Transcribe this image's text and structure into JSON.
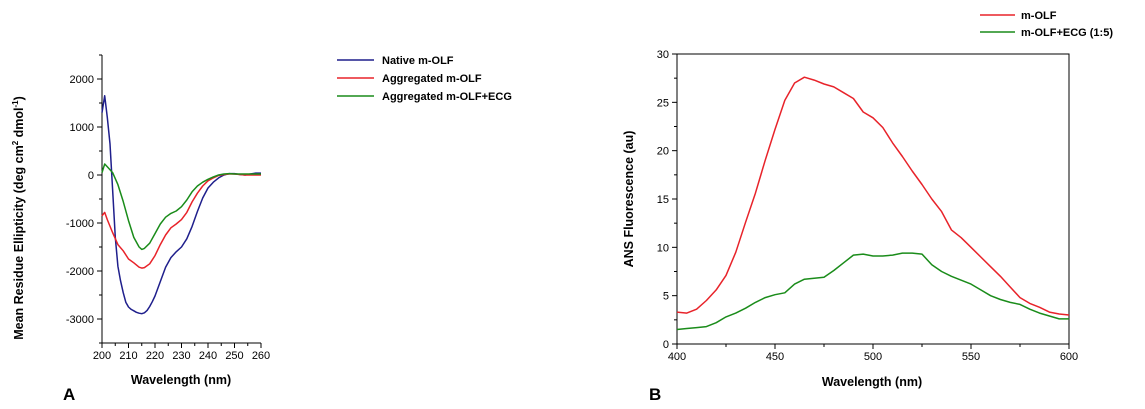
{
  "chart_data": [
    {
      "type": "line",
      "panel_label": "A",
      "xlabel": "Wavelength (nm)",
      "ylabel_main": "Mean Residue Ellipticity (deg cm",
      "ylabel_mid": " dmol",
      "ylabel_end": ")",
      "ylabel_sup1": "2",
      "ylabel_sup2": "-1",
      "xlim": [
        200,
        260
      ],
      "ylim": [
        -3500,
        2500
      ],
      "xticks": [
        200,
        210,
        220,
        230,
        240,
        250,
        260
      ],
      "yticks": [
        -3000,
        -2000,
        -1000,
        0,
        1000,
        2000
      ],
      "legend_position": "top-right",
      "series": [
        {
          "name": "Native m-OLF",
          "color": "#1f1f8c",
          "x": [
            200,
            201,
            202,
            203,
            204,
            205,
            206,
            207,
            208,
            209,
            210,
            211,
            212,
            213,
            214,
            215,
            216,
            217,
            218,
            219,
            220,
            222,
            224,
            226,
            228,
            230,
            232,
            234,
            236,
            238,
            240,
            242,
            244,
            246,
            248,
            250,
            252,
            254,
            256,
            258,
            260
          ],
          "y": [
            1300,
            1650,
            1200,
            650,
            -300,
            -1300,
            -1900,
            -2200,
            -2450,
            -2650,
            -2750,
            -2800,
            -2830,
            -2860,
            -2880,
            -2890,
            -2870,
            -2820,
            -2740,
            -2640,
            -2520,
            -2220,
            -1920,
            -1720,
            -1600,
            -1500,
            -1330,
            -1070,
            -760,
            -480,
            -270,
            -150,
            -60,
            0,
            30,
            30,
            10,
            0,
            20,
            40,
            40
          ]
        },
        {
          "name": "Aggregated m-OLF",
          "color": "#e8232a",
          "x": [
            200,
            201,
            202,
            204,
            206,
            208,
            210,
            212,
            214,
            215,
            216,
            218,
            220,
            222,
            224,
            226,
            228,
            230,
            232,
            234,
            236,
            238,
            240,
            242,
            244,
            246,
            248,
            250,
            252,
            254,
            256,
            258,
            260
          ],
          "y": [
            -850,
            -780,
            -930,
            -1200,
            -1450,
            -1580,
            -1750,
            -1830,
            -1920,
            -1940,
            -1930,
            -1850,
            -1680,
            -1450,
            -1250,
            -1100,
            -1020,
            -930,
            -780,
            -560,
            -380,
            -230,
            -120,
            -60,
            -10,
            10,
            20,
            20,
            10,
            0,
            0,
            0,
            0
          ]
        },
        {
          "name": "Aggregated m-OLF+ECG",
          "color": "#1a8c1a",
          "x": [
            200,
            201,
            202,
            204,
            206,
            208,
            210,
            212,
            214,
            215,
            216,
            218,
            220,
            222,
            224,
            226,
            228,
            230,
            232,
            234,
            236,
            238,
            240,
            242,
            244,
            246,
            248,
            250,
            252,
            254,
            256,
            258,
            260
          ],
          "y": [
            50,
            230,
            170,
            50,
            -200,
            -550,
            -950,
            -1300,
            -1500,
            -1550,
            -1530,
            -1420,
            -1220,
            -1020,
            -880,
            -800,
            -750,
            -660,
            -520,
            -350,
            -230,
            -150,
            -90,
            -40,
            0,
            20,
            30,
            20,
            20,
            20,
            20,
            20,
            20
          ]
        }
      ]
    },
    {
      "type": "line",
      "panel_label": "B",
      "xlabel": "Wavelength (nm)",
      "ylabel": "ANS Fluorescence (au)",
      "xlim": [
        400,
        600
      ],
      "ylim": [
        0,
        30
      ],
      "xticks": [
        400,
        450,
        500,
        550,
        600
      ],
      "yticks": [
        0,
        5,
        10,
        15,
        20,
        25,
        30
      ],
      "legend_position": "top-right",
      "series": [
        {
          "name": "m-OLF",
          "color": "#e8232a",
          "x": [
            400,
            405,
            410,
            415,
            420,
            425,
            430,
            435,
            440,
            445,
            450,
            455,
            460,
            465,
            470,
            475,
            480,
            485,
            490,
            495,
            500,
            505,
            510,
            515,
            520,
            525,
            530,
            535,
            540,
            545,
            550,
            555,
            560,
            565,
            570,
            575,
            580,
            585,
            590,
            595,
            600
          ],
          "y": [
            3.3,
            3.2,
            3.6,
            4.5,
            5.6,
            7.1,
            9.5,
            12.6,
            15.6,
            19.0,
            22.2,
            25.2,
            27.0,
            27.6,
            27.3,
            26.9,
            26.6,
            26.0,
            25.4,
            24.0,
            23.4,
            22.4,
            20.8,
            19.4,
            17.9,
            16.5,
            15.0,
            13.7,
            11.8,
            11.0,
            10.0,
            9.0,
            8.0,
            7.0,
            5.9,
            4.8,
            4.2,
            3.8,
            3.3,
            3.1,
            3.0
          ]
        },
        {
          "name": "m-OLF+ECG (1:5)",
          "color": "#1a8c1a",
          "x": [
            400,
            405,
            410,
            415,
            420,
            425,
            430,
            435,
            440,
            445,
            450,
            455,
            460,
            465,
            470,
            475,
            480,
            485,
            490,
            495,
            500,
            505,
            510,
            515,
            520,
            525,
            530,
            535,
            540,
            545,
            550,
            555,
            560,
            565,
            570,
            575,
            580,
            585,
            590,
            595,
            600
          ],
          "y": [
            1.5,
            1.6,
            1.7,
            1.8,
            2.2,
            2.8,
            3.2,
            3.7,
            4.3,
            4.8,
            5.1,
            5.3,
            6.2,
            6.7,
            6.8,
            6.9,
            7.6,
            8.4,
            9.2,
            9.3,
            9.1,
            9.1,
            9.2,
            9.4,
            9.4,
            9.3,
            8.2,
            7.5,
            7.0,
            6.6,
            6.2,
            5.6,
            5.0,
            4.6,
            4.3,
            4.1,
            3.6,
            3.2,
            2.9,
            2.6,
            2.6
          ]
        }
      ]
    }
  ]
}
